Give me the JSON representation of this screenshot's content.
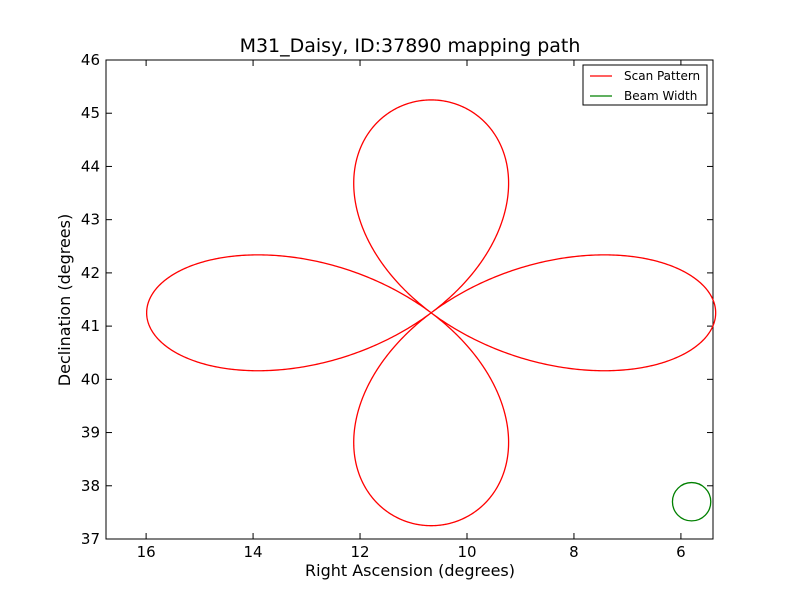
{
  "chart_data": {
    "type": "line",
    "title": "M31_Daisy, ID:37890 mapping path",
    "xlabel": "Right Ascension (degrees)",
    "ylabel": "Declination (degrees)",
    "xlim": [
      16.75,
      5.4
    ],
    "ylim": [
      37,
      46
    ],
    "x_ticks": [
      16,
      14,
      12,
      10,
      8,
      6
    ],
    "y_ticks": [
      37,
      38,
      39,
      40,
      41,
      42,
      43,
      44,
      45,
      46
    ],
    "grid": false,
    "legend_position": "top-right",
    "series": [
      {
        "name": "Scan Pattern",
        "color": "#ff0000",
        "center": [
          10.67,
          41.25
        ],
        "petal_radius_deg": 4.0,
        "petals": 4,
        "ra_scale": 1.33,
        "dec_scale": 1.0,
        "start_point": [
          16.0,
          41.27
        ]
      },
      {
        "name": "Beam Width",
        "color": "#008000",
        "center": [
          5.8,
          37.7
        ],
        "radius_deg": 0.36
      }
    ]
  }
}
